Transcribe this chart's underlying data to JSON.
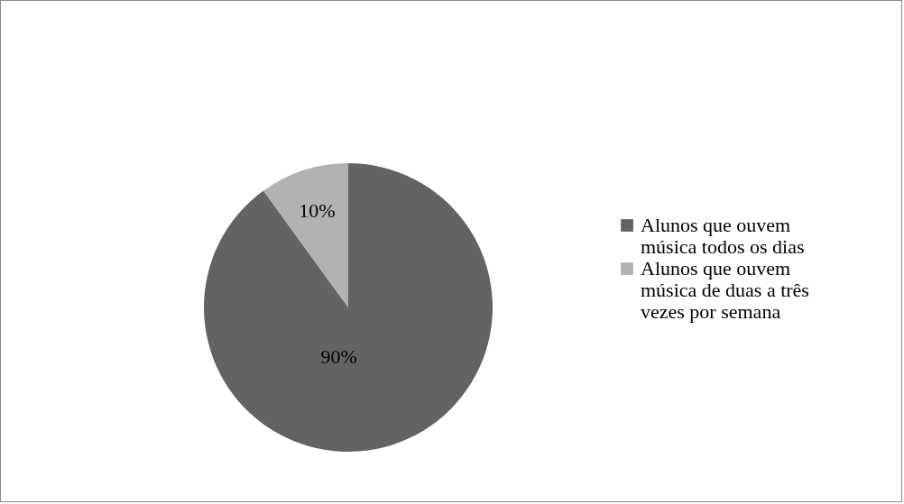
{
  "chart_data": {
    "type": "pie",
    "categories": [
      "Alunos que ouvem música todos os dias",
      "Alunos que ouvem música de duas a três vezes por semana"
    ],
    "values": [
      90,
      10
    ],
    "colors": [
      "#636363",
      "#b2b2b2"
    ],
    "value_labels": [
      "90%",
      "10%"
    ],
    "legend": "right"
  }
}
